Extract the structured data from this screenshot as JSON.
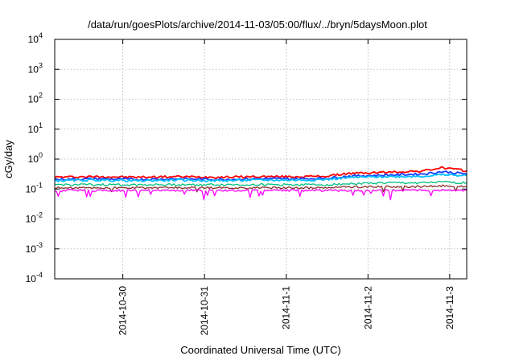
{
  "chart_data": {
    "type": "line",
    "title": "/data/run/goesPlots/archive/2014-11-03/05:00/flux/../bryn/5daysMoon.plot",
    "xlabel": "Coordinated Universal Time (UTC)",
    "ylabel": "cGy/day",
    "yscale": "log",
    "ylim": [
      0.0001,
      10000
    ],
    "yticks": [
      {
        "value": 0.0001,
        "base": "10",
        "exp": "-4"
      },
      {
        "value": 0.001,
        "base": "10",
        "exp": "-3"
      },
      {
        "value": 0.01,
        "base": "10",
        "exp": "-2"
      },
      {
        "value": 0.1,
        "base": "10",
        "exp": "-1"
      },
      {
        "value": 1,
        "base": "10",
        "exp": "0"
      },
      {
        "value": 10,
        "base": "10",
        "exp": "1"
      },
      {
        "value": 100,
        "base": "10",
        "exp": "2"
      },
      {
        "value": 1000,
        "base": "10",
        "exp": "3"
      },
      {
        "value": 10000,
        "base": "10",
        "exp": "4"
      }
    ],
    "xlim": [
      "2014-10-29T04:00",
      "2014-11-03T05:00"
    ],
    "xticks": [
      {
        "value": "2014-10-30",
        "label": "2014-10-30"
      },
      {
        "value": "2014-10-31",
        "label": "2014-10-31"
      },
      {
        "value": "2014-11-01",
        "label": "2014-11-1"
      },
      {
        "value": "2014-11-02",
        "label": "2014-11-2"
      },
      {
        "value": "2014-11-03",
        "label": "2014-11-3"
      }
    ],
    "grid": true,
    "x": [
      "2014-10-29T04:00",
      "2014-10-29T16:00",
      "2014-10-30T04:00",
      "2014-10-30T16:00",
      "2014-10-31T04:00",
      "2014-10-31T16:00",
      "2014-11-01T04:00",
      "2014-11-01T12:00",
      "2014-11-01T18:00",
      "2014-11-02T04:00",
      "2014-11-02T16:00",
      "2014-11-02T22:00",
      "2014-11-03T05:00"
    ],
    "series": [
      {
        "color": "#ff0000",
        "values": [
          0.25,
          0.26,
          0.25,
          0.26,
          0.25,
          0.26,
          0.26,
          0.27,
          0.33,
          0.36,
          0.4,
          0.52,
          0.4
        ]
      },
      {
        "color": "#1a3cff",
        "values": [
          0.21,
          0.22,
          0.21,
          0.22,
          0.21,
          0.22,
          0.22,
          0.23,
          0.27,
          0.29,
          0.32,
          0.38,
          0.32
        ]
      },
      {
        "color": "#00bfff",
        "values": [
          0.19,
          0.2,
          0.19,
          0.2,
          0.19,
          0.2,
          0.2,
          0.21,
          0.24,
          0.26,
          0.27,
          0.3,
          0.28
        ]
      },
      {
        "color": "#00c080",
        "values": [
          0.14,
          0.14,
          0.14,
          0.14,
          0.14,
          0.14,
          0.14,
          0.14,
          0.15,
          0.16,
          0.16,
          0.17,
          0.16
        ]
      },
      {
        "color": "#8b2f2f",
        "values": [
          0.11,
          0.11,
          0.11,
          0.11,
          0.11,
          0.11,
          0.11,
          0.11,
          0.12,
          0.12,
          0.12,
          0.13,
          0.12
        ]
      },
      {
        "color": "#ff00ff",
        "values": [
          0.09,
          0.09,
          0.09,
          0.09,
          0.09,
          0.09,
          0.09,
          0.09,
          0.09,
          0.09,
          0.09,
          0.09,
          0.09
        ]
      }
    ]
  }
}
